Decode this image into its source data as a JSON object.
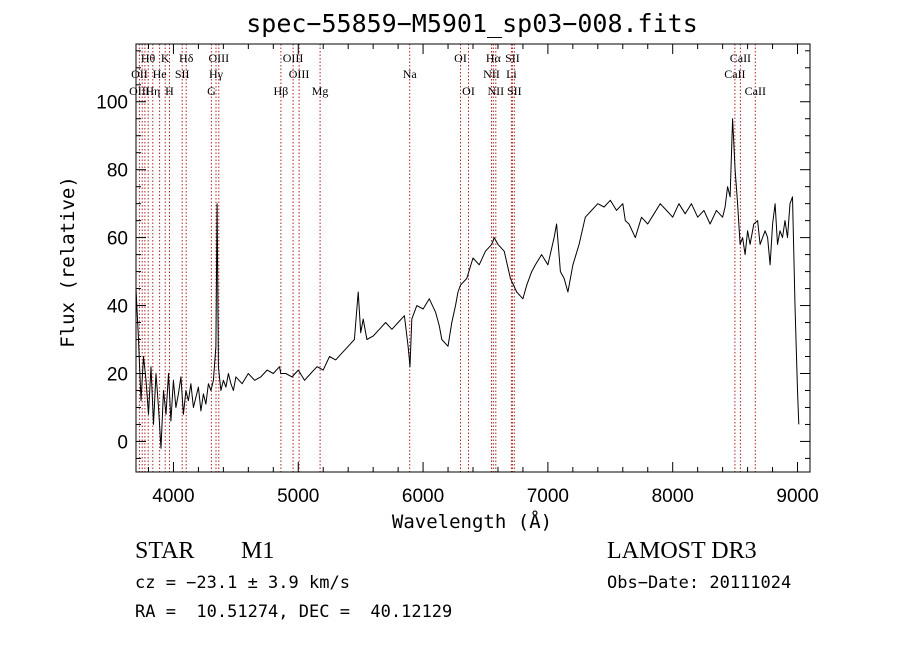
{
  "chart_data": {
    "type": "line",
    "title": "spec−55859−M5901_sp03−008.fits",
    "xlabel": "Wavelength (Å)",
    "ylabel": "Flux (relative)",
    "xlim": [
      3700,
      9100
    ],
    "ylim": [
      -9,
      117
    ],
    "xticks": [
      4000,
      5000,
      6000,
      7000,
      8000,
      9000
    ],
    "yticks": [
      0,
      20,
      40,
      60,
      80,
      100
    ],
    "xticklabels": [
      "4000",
      "5000",
      "6000",
      "7000",
      "8000",
      "9000"
    ],
    "yticklabels": [
      "0",
      "20",
      "40",
      "60",
      "80",
      "100"
    ],
    "line_color": "#000000",
    "marker_color": "#b22222",
    "series": [
      {
        "name": "flux",
        "x": [
          3700,
          3720,
          3740,
          3760,
          3780,
          3800,
          3820,
          3840,
          3860,
          3880,
          3900,
          3920,
          3940,
          3960,
          3980,
          4000,
          4020,
          4040,
          4060,
          4080,
          4100,
          4120,
          4140,
          4160,
          4180,
          4200,
          4220,
          4240,
          4260,
          4280,
          4300,
          4320,
          4340,
          4350,
          4360,
          4380,
          4400,
          4420,
          4440,
          4460,
          4480,
          4500,
          4550,
          4600,
          4650,
          4700,
          4750,
          4800,
          4850,
          4860,
          4900,
          4950,
          5000,
          5050,
          5100,
          5150,
          5200,
          5250,
          5300,
          5350,
          5400,
          5450,
          5480,
          5500,
          5520,
          5550,
          5600,
          5650,
          5700,
          5750,
          5800,
          5850,
          5880,
          5895,
          5910,
          5950,
          6000,
          6050,
          6100,
          6130,
          6150,
          6200,
          6230,
          6260,
          6280,
          6300,
          6350,
          6400,
          6450,
          6500,
          6550,
          6570,
          6600,
          6650,
          6700,
          6750,
          6800,
          6830,
          6870,
          6900,
          6950,
          7000,
          7050,
          7070,
          7100,
          7130,
          7160,
          7200,
          7250,
          7300,
          7350,
          7400,
          7450,
          7500,
          7550,
          7600,
          7620,
          7650,
          7700,
          7750,
          7800,
          7850,
          7900,
          7950,
          8000,
          8050,
          8100,
          8150,
          8200,
          8250,
          8300,
          8350,
          8400,
          8420,
          8440,
          8460,
          8480,
          8500,
          8520,
          8540,
          8560,
          8580,
          8600,
          8620,
          8650,
          8680,
          8700,
          8740,
          8760,
          8780,
          8800,
          8820,
          8840,
          8860,
          8880,
          8900,
          8920,
          8940,
          8960,
          8980,
          9000,
          9010
        ],
        "y": [
          45,
          30,
          12,
          25,
          18,
          8,
          22,
          5,
          20,
          10,
          -2,
          15,
          8,
          20,
          6,
          18,
          10,
          14,
          19,
          8,
          15,
          12,
          17,
          10,
          13,
          16,
          9,
          14,
          11,
          17,
          15,
          18,
          28,
          70,
          22,
          15,
          18,
          16,
          20,
          17,
          15,
          19,
          17,
          20,
          18,
          19,
          21,
          20,
          22,
          20,
          20,
          19,
          21,
          18,
          20,
          22,
          21,
          25,
          24,
          26,
          28,
          30,
          44,
          32,
          36,
          30,
          31,
          33,
          35,
          33,
          35,
          37,
          28,
          22,
          36,
          40,
          39,
          42,
          38,
          34,
          30,
          28,
          35,
          40,
          44,
          46,
          48,
          54,
          52,
          56,
          58,
          60,
          58,
          56,
          48,
          44,
          42,
          46,
          50,
          52,
          55,
          52,
          60,
          64,
          50,
          48,
          44,
          52,
          58,
          66,
          68,
          70,
          69,
          71,
          68,
          70,
          65,
          64,
          60,
          66,
          64,
          67,
          70,
          68,
          66,
          70,
          67,
          70,
          66,
          68,
          64,
          68,
          66,
          69,
          75,
          72,
          95,
          80,
          70,
          58,
          60,
          55,
          62,
          58,
          64,
          65,
          58,
          62,
          60,
          52,
          64,
          70,
          58,
          62,
          60,
          65,
          60,
          70,
          72,
          40,
          15,
          5
        ]
      }
    ],
    "line_ids": [
      {
        "label": "Hθ",
        "wl": 3797,
        "row": 0
      },
      {
        "label": "OII",
        "wl": 3727,
        "row": 1
      },
      {
        "label": "OIII",
        "wl": 3727,
        "row": 2
      },
      {
        "label": "K",
        "wl": 3934,
        "row": 0
      },
      {
        "label": "He",
        "wl": 3889,
        "row": 1
      },
      {
        "label": "Hη",
        "wl": 3835,
        "row": 2
      },
      {
        "label": "SII",
        "wl": 4070,
        "row": 1
      },
      {
        "label": "H",
        "wl": 3968,
        "row": 2
      },
      {
        "label": "Hδ",
        "wl": 4102,
        "row": 0
      },
      {
        "label": "OIII",
        "wl": 4363,
        "row": 0
      },
      {
        "label": "Hγ",
        "wl": 4341,
        "row": 1
      },
      {
        "label": "G",
        "wl": 4304,
        "row": 2
      },
      {
        "label": "Hβ",
        "wl": 4861,
        "row": 2
      },
      {
        "label": "OIII",
        "wl": 4959,
        "row": 0
      },
      {
        "label": "OIII",
        "wl": 5007,
        "row": 1
      },
      {
        "label": "Mg",
        "wl": 5175,
        "row": 2
      },
      {
        "label": "Na",
        "wl": 5893,
        "row": 1
      },
      {
        "label": "OI",
        "wl": 6300,
        "row": 0
      },
      {
        "label": "OI",
        "wl": 6364,
        "row": 2
      },
      {
        "label": "Hα",
        "wl": 6563,
        "row": 0
      },
      {
        "label": "SII",
        "wl": 6716,
        "row": 0
      },
      {
        "label": "NII",
        "wl": 6548,
        "row": 1
      },
      {
        "label": "Li",
        "wl": 6708,
        "row": 1
      },
      {
        "label": "NII",
        "wl": 6583,
        "row": 2
      },
      {
        "label": "SII",
        "wl": 6731,
        "row": 2
      },
      {
        "label": "CaII",
        "wl": 8542,
        "row": 0
      },
      {
        "label": "CaII",
        "wl": 8498,
        "row": 1
      },
      {
        "label": "CaII",
        "wl": 8662,
        "row": 2
      }
    ],
    "marker_wavelengths": [
      3727,
      3750,
      3771,
      3798,
      3835,
      3889,
      3934,
      3968,
      4070,
      4102,
      4304,
      4341,
      4363,
      4861,
      4959,
      5007,
      5175,
      5893,
      6300,
      6364,
      6548,
      6563,
      6583,
      6708,
      6716,
      6731,
      8498,
      8542,
      8662
    ]
  },
  "info": {
    "object_class": "STAR",
    "subclass": "M1",
    "survey": "LAMOST DR3",
    "redshift": "cz = −23.1 ± 3.9 km/s",
    "obs_date": "Obs−Date: 20111024",
    "coords": "RA =  10.51274, DEC =  40.12129"
  }
}
